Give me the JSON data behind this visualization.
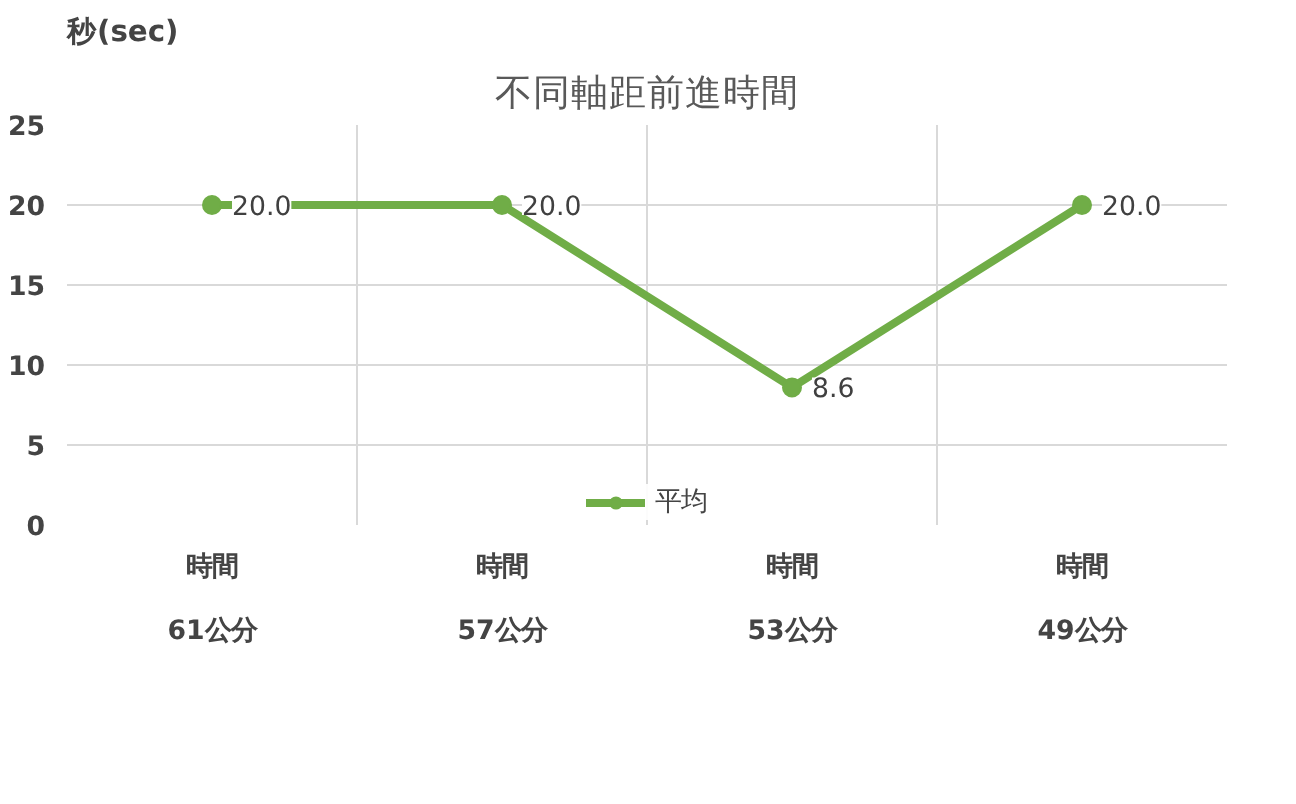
{
  "chart_data": {
    "type": "line",
    "title": "不同軸距前進時間",
    "ylabel": "秒(sec)",
    "categories": [
      "時間\n61公分",
      "時間\n57公分",
      "時間\n53公分",
      "時間\n49公分"
    ],
    "series": [
      {
        "name": "平均",
        "color": "#70ad47",
        "values": [
          20.0,
          20.0,
          8.6,
          20.0
        ],
        "value_labels": [
          "20.0",
          "20.0",
          "8.6",
          "20.0"
        ]
      }
    ],
    "ylim": [
      0,
      25
    ],
    "yticks": [
      0,
      5,
      10,
      15,
      20,
      25
    ],
    "grid": true,
    "legend": "bottom",
    "marker": "circle",
    "line_style": "solid"
  }
}
